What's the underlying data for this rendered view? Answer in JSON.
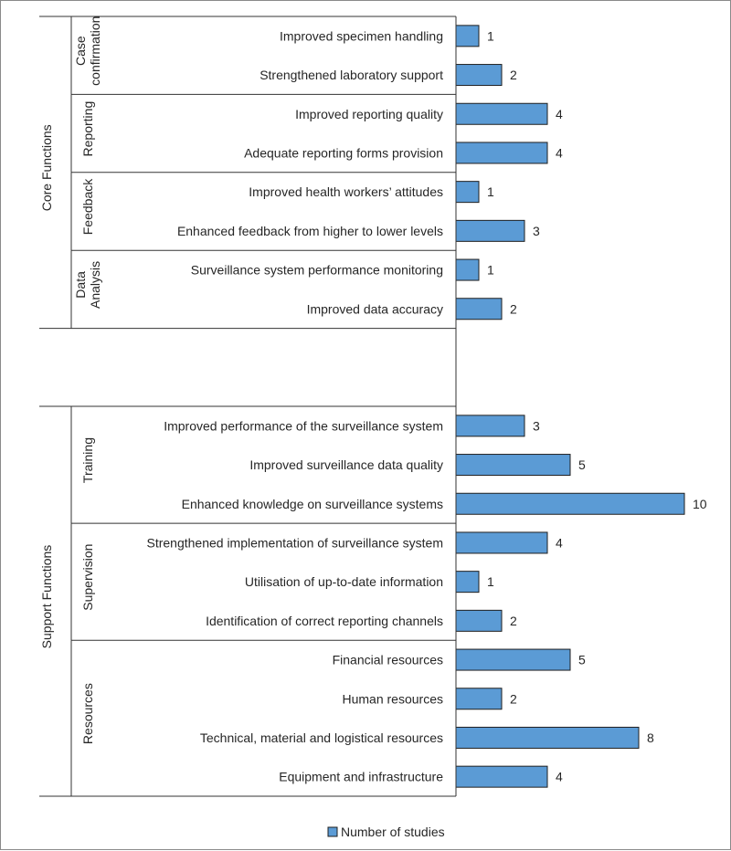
{
  "colors": {
    "bar": "#5b9bd5",
    "bar_stroke": "#1f1f1f",
    "line": "#333333"
  },
  "chart_data": {
    "type": "bar",
    "orientation": "horizontal",
    "legend_position": "bottom",
    "legend": "Number of studies",
    "xlim": [
      0,
      10
    ],
    "grid": false,
    "groups": [
      {
        "name": "Core Functions",
        "subgroups": [
          {
            "name": "Case confirmation",
            "categories": [
              "Improved specimen handling",
              "Strengthened laboratory support"
            ],
            "values": [
              1,
              2
            ]
          },
          {
            "name": "Reporting",
            "categories": [
              "Improved reporting quality",
              "Adequate reporting forms provision"
            ],
            "values": [
              4,
              4
            ]
          },
          {
            "name": "Feedback",
            "categories": [
              "Improved health workers’ attitudes",
              "Enhanced feedback from higher to lower levels"
            ],
            "values": [
              1,
              3
            ]
          },
          {
            "name": "Data Analysis",
            "categories": [
              "Surveillance system performance monitoring",
              "Improved data accuracy"
            ],
            "values": [
              1,
              2
            ]
          }
        ]
      },
      {
        "name": "Support Functions",
        "subgroups": [
          {
            "name": "Training",
            "categories": [
              "Improved performance of the surveillance system",
              "Improved surveillance data quality",
              "Enhanced knowledge on surveillance systems"
            ],
            "values": [
              3,
              5,
              10
            ]
          },
          {
            "name": "Supervision",
            "categories": [
              "Strengthened implementation of surveillance system",
              "Utilisation of up-to-date information",
              "Identification of correct reporting channels"
            ],
            "values": [
              4,
              1,
              2
            ]
          },
          {
            "name": "Resources",
            "categories": [
              "Financial resources",
              "Human resources",
              "Technical, material and logistical resources",
              "Equipment and infrastructure"
            ],
            "values": [
              5,
              2,
              8,
              4
            ]
          }
        ]
      }
    ]
  }
}
